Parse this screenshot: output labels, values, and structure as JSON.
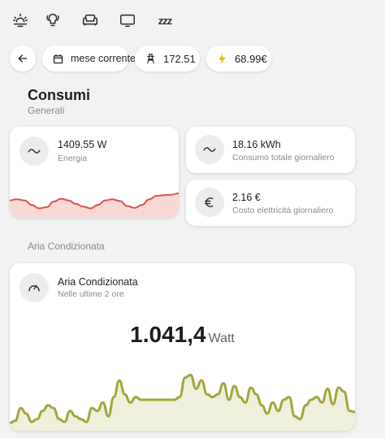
{
  "top_icons": [
    "weather-sun-icon",
    "lightbulb-group-icon",
    "sofa-icon",
    "tv-icon",
    "sleep-zzz-icon"
  ],
  "sleep_icon_text": "zzz",
  "chips": {
    "period_label": "mese corrente",
    "power_value": "172.51",
    "cost_value": "68.99€"
  },
  "header": {
    "title": "Consumi",
    "subtitle": "Generali"
  },
  "energy_card": {
    "value": "1409.55 W",
    "label": "Energia",
    "sparkline": [
      0.55,
      0.6,
      0.55,
      0.35,
      0.2,
      0.25,
      0.5,
      0.62,
      0.55,
      0.4,
      0.28,
      0.2,
      0.35,
      0.55,
      0.6,
      0.52,
      0.3,
      0.22,
      0.35,
      0.6,
      0.75,
      0.78,
      0.8,
      0.86
    ],
    "line_color": "#d8554a",
    "fill_color": "#f7d8d5"
  },
  "daily_card": {
    "value": "18.16 kWh",
    "label": "Consumo totale giornaliero"
  },
  "cost_card": {
    "value": "2.16 €",
    "label": "Costo elettricità giornaliero"
  },
  "ac_section_title": "Aria Condizionata",
  "ac_card": {
    "title": "Aria Condizionata",
    "subtitle": "Nelle ultime 2 ore",
    "value": "1.041,4",
    "unit": "Watt",
    "sparkline": [
      0.08,
      0.12,
      0.35,
      0.25,
      0.1,
      0.15,
      0.3,
      0.4,
      0.35,
      0.15,
      0.1,
      0.3,
      0.2,
      0.15,
      0.1,
      0.35,
      0.3,
      0.45,
      0.2,
      0.55,
      0.85,
      0.6,
      0.45,
      0.55,
      0.5,
      0.5,
      0.5,
      0.5,
      0.5,
      0.5,
      0.5,
      0.55,
      0.9,
      0.95,
      0.7,
      0.85,
      0.6,
      0.55,
      0.6,
      0.8,
      0.5,
      0.75,
      0.55,
      0.45,
      0.72,
      0.6,
      0.4,
      0.25,
      0.45,
      0.3,
      0.5,
      0.55,
      0.2,
      0.15,
      0.4,
      0.5,
      0.55,
      0.45,
      0.7,
      0.42,
      0.72,
      0.65,
      0.3,
      0.28
    ],
    "line_color": "#a3a53a",
    "fill_color": "#eef0dc"
  }
}
